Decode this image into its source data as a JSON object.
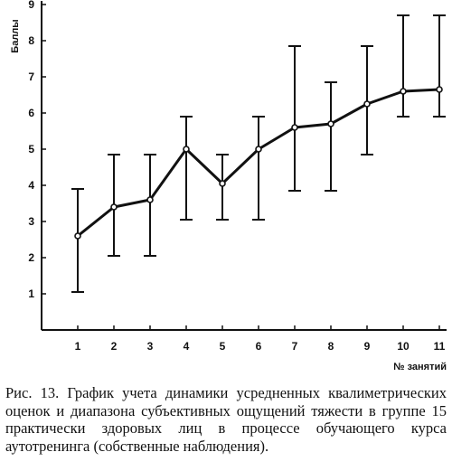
{
  "chart_data": {
    "type": "line",
    "ylabel": "Баллы",
    "xlabel": "№ занятий",
    "ylim": [
      0,
      9
    ],
    "y_ticks": [
      "1",
      "2",
      "3",
      "4",
      "5",
      "6",
      "7",
      "8",
      "9"
    ],
    "categories": [
      "1",
      "2",
      "3",
      "4",
      "5",
      "6",
      "7",
      "8",
      "9",
      "10",
      "11"
    ],
    "series": [
      {
        "values": [
          2.6,
          3.4,
          3.6,
          5.0,
          4.05,
          5.0,
          5.6,
          5.7,
          6.25,
          6.6,
          6.65
        ],
        "range_low": [
          1.05,
          2.05,
          2.05,
          3.05,
          3.05,
          3.05,
          3.85,
          3.85,
          4.85,
          5.9,
          5.9
        ],
        "range_high": [
          3.9,
          4.85,
          4.85,
          5.9,
          4.85,
          5.9,
          7.85,
          6.85,
          7.85,
          8.7,
          8.7
        ]
      }
    ],
    "grid": false,
    "legend": "none"
  },
  "caption": "Рис. 13. График учета динамики усредненных квалиметрических оценок и диапазона субъективных ощущений тяжести в группе 15 практически здоровых лиц в процессе обучающего курса аутотренинга (собственные наблюдения)."
}
